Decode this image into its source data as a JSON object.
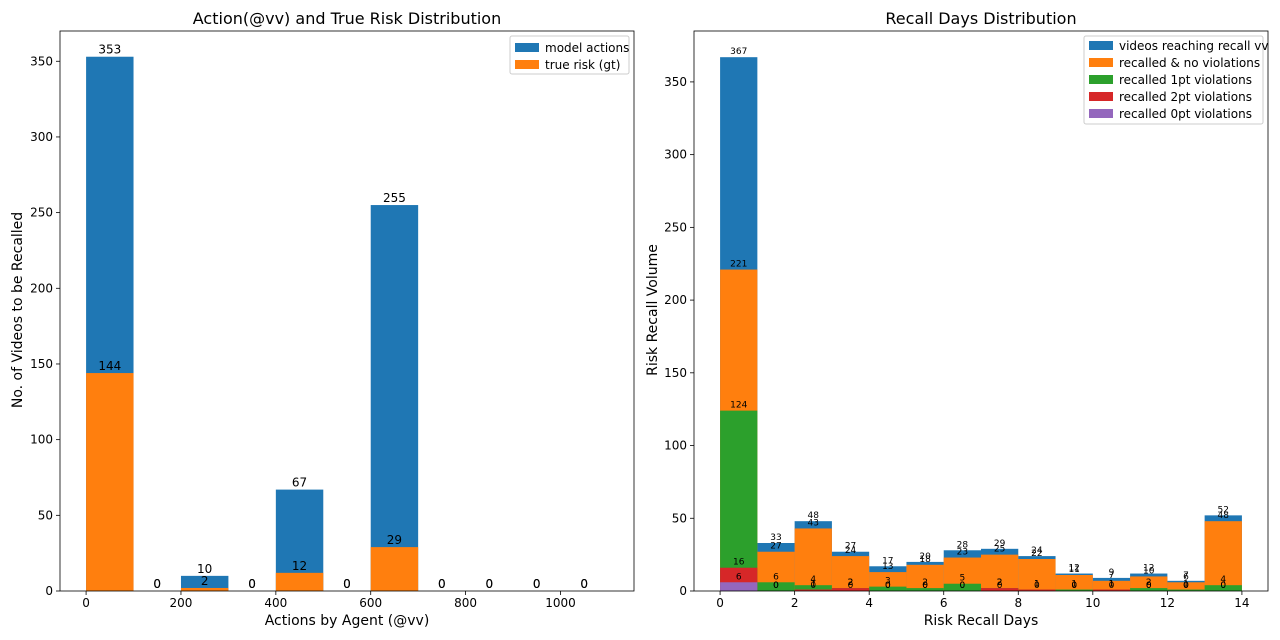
{
  "chart_data": [
    {
      "type": "bar",
      "title": "Action(@vv) and True Risk Distribution",
      "xlabel": "Actions by Agent (@vv)",
      "ylabel": "No. of Videos to be Recalled",
      "xlim": [
        -55,
        1155
      ],
      "ylim": [
        0,
        370
      ],
      "xticks": [
        0,
        200,
        400,
        600,
        800,
        1000
      ],
      "yticks": [
        0,
        50,
        100,
        150,
        200,
        250,
        300,
        350
      ],
      "legend_position": "top-right",
      "bins": [
        [
          0,
          100
        ],
        [
          100,
          200
        ],
        [
          200,
          300
        ],
        [
          300,
          400
        ],
        [
          400,
          500
        ],
        [
          500,
          600
        ],
        [
          600,
          700
        ],
        [
          700,
          800
        ],
        [
          800,
          900
        ],
        [
          900,
          1000
        ],
        [
          1000,
          1100
        ]
      ],
      "series": [
        {
          "name": "model actions",
          "color": "#1f77b4",
          "values": [
            353,
            0,
            10,
            0,
            67,
            0,
            255,
            0,
            0,
            0,
            0
          ]
        },
        {
          "name": "true risk (gt)",
          "color": "#ff7f0e",
          "values": [
            144,
            0,
            2,
            0,
            12,
            0,
            29,
            0,
            0,
            0,
            0
          ]
        }
      ]
    },
    {
      "type": "bar",
      "title": "Recall Days Distribution",
      "xlabel": "Risk Recall Days",
      "ylabel": "Risk Recall Volume",
      "xlim": [
        -0.7,
        14.7
      ],
      "ylim": [
        0,
        385
      ],
      "xticks": [
        0,
        2,
        4,
        6,
        8,
        10,
        12,
        14
      ],
      "yticks": [
        0,
        50,
        100,
        150,
        200,
        250,
        300,
        350
      ],
      "legend_position": "top-right",
      "bin_width": 1,
      "bins_start": [
        0,
        1,
        2,
        3,
        4,
        5,
        6,
        7,
        8,
        9,
        10,
        11,
        12,
        13
      ],
      "series": [
        {
          "name": "videos reaching recall vv",
          "color": "#1f77b4",
          "values": [
            367,
            33,
            48,
            27,
            17,
            20,
            28,
            29,
            24,
            12,
            9,
            12,
            7,
            52
          ]
        },
        {
          "name": "recalled & no violations",
          "color": "#ff7f0e",
          "values": [
            221,
            27,
            43,
            24,
            13,
            18,
            23,
            25,
            22,
            11,
            7,
            10,
            6,
            48
          ]
        },
        {
          "name": "recalled 1pt violations",
          "color": "#2ca02c",
          "values": [
            124,
            6,
            4,
            2,
            3,
            2,
            5,
            2,
            1,
            1,
            1,
            2,
            1,
            4
          ]
        },
        {
          "name": "recalled 2pt violations",
          "color": "#d62728",
          "values": [
            16,
            0,
            1,
            2,
            0,
            0,
            0,
            2,
            1,
            0,
            1,
            0,
            0,
            0
          ]
        },
        {
          "name": "recalled 0pt violations",
          "color": "#9467bd",
          "values": [
            6,
            0,
            0,
            0,
            0,
            0,
            0,
            0,
            0,
            0,
            0,
            0,
            0,
            0
          ]
        }
      ],
      "bar_labels": [
        {
          "name": "videos reaching recall vv",
          "labels": [
            "367",
            "33",
            "48",
            "27",
            "17",
            "20",
            "28",
            "29",
            "24",
            "12",
            "9",
            "12",
            "7",
            "52"
          ]
        },
        {
          "name": "recalled & no violations",
          "labels": [
            "221",
            "27",
            "43",
            "24",
            "13",
            "18",
            "23",
            "25",
            "22",
            "11",
            "7",
            "10",
            "6",
            "48"
          ]
        },
        {
          "name": "recalled 1pt violations",
          "labels": [
            "124",
            "6",
            "4",
            "2",
            "3",
            "2",
            "5",
            "2",
            "1",
            "1",
            "1",
            "2",
            "1",
            "4"
          ]
        },
        {
          "name": "recalled 2pt violations",
          "labels": [
            "16",
            "0",
            "1",
            "2",
            "0",
            "0",
            "0",
            "2",
            "1",
            "0",
            "1",
            "0",
            "0",
            "0"
          ]
        },
        {
          "name": "recalled 0pt violations",
          "labels": [
            "6",
            "0",
            "0",
            "0",
            "0",
            "0",
            "0",
            "0",
            "0",
            "0",
            "0",
            "0",
            "0",
            "0"
          ]
        }
      ]
    }
  ]
}
